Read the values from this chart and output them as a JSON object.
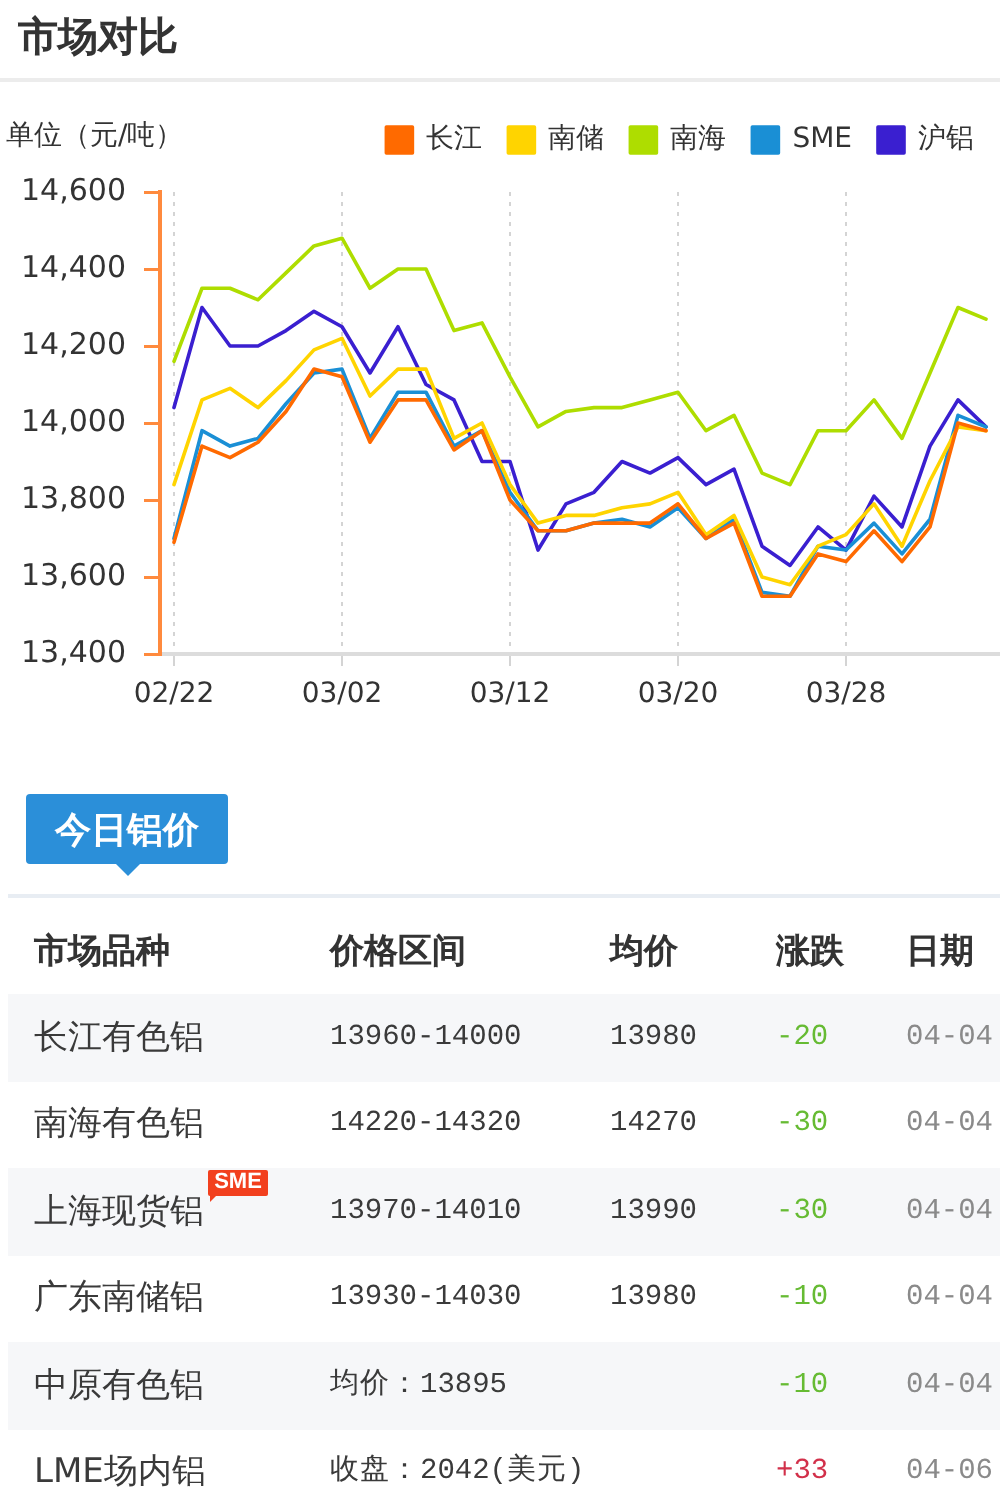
{
  "chart_data": [
    {
      "type": "line",
      "title": "市场对比",
      "ylabel": "单位（元/吨）",
      "categories": [
        "02/22",
        null,
        null,
        null,
        null,
        null,
        "03/02",
        null,
        null,
        null,
        null,
        null,
        "03/12",
        null,
        null,
        null,
        null,
        null,
        "03/20",
        null,
        null,
        null,
        null,
        null,
        "03/28",
        null,
        null,
        null,
        null,
        null
      ],
      "series": [
        {
          "name": "长江",
          "color": "#ff6a00",
          "values": [
            13690,
            13940,
            13910,
            13950,
            14030,
            14140,
            14120,
            13950,
            14060,
            14060,
            13930,
            13980,
            13800,
            13720,
            13720,
            13740,
            13740,
            13740,
            13790,
            13700,
            13740,
            13550,
            13550,
            13660,
            13640,
            13720,
            13640,
            13730,
            14000,
            13980
          ]
        },
        {
          "name": "南储",
          "color": "#ffd400",
          "values": [
            13840,
            14060,
            14090,
            14040,
            14110,
            14190,
            14220,
            14070,
            14140,
            14140,
            13960,
            14000,
            13840,
            13740,
            13760,
            13760,
            13780,
            13790,
            13820,
            13710,
            13760,
            13600,
            13580,
            13680,
            13710,
            13790,
            13680,
            13850,
            13990,
            13980
          ]
        },
        {
          "name": "南海",
          "color": "#aedd00",
          "values": [
            14160,
            14350,
            14350,
            14320,
            14390,
            14460,
            14480,
            14350,
            14400,
            14400,
            14240,
            14260,
            14120,
            13990,
            14030,
            14040,
            14040,
            14060,
            14080,
            13980,
            14020,
            13870,
            13840,
            13980,
            13980,
            14060,
            13960,
            14130,
            14300,
            14270
          ]
        },
        {
          "name": "SME",
          "color": "#1a8fd5",
          "values": [
            13700,
            13980,
            13940,
            13960,
            14050,
            14130,
            14140,
            13960,
            14080,
            14080,
            13940,
            13980,
            13820,
            13720,
            13720,
            13740,
            13750,
            13730,
            13780,
            13700,
            13750,
            13560,
            13550,
            13680,
            13670,
            13740,
            13660,
            13750,
            14020,
            13990
          ]
        },
        {
          "name": "沪铝",
          "color": "#3a1fd0",
          "values": [
            14040,
            14300,
            14200,
            14200,
            14240,
            14290,
            14250,
            14130,
            14250,
            14100,
            14060,
            13900,
            13900,
            13670,
            13790,
            13820,
            13900,
            13870,
            13910,
            13840,
            13880,
            13680,
            13630,
            13730,
            13670,
            13810,
            13730,
            13940,
            14060,
            13990
          ]
        }
      ],
      "ylim": [
        13400,
        14600
      ],
      "yticks": [
        {
          "value": 13400,
          "label": "13,400"
        },
        {
          "value": 13600,
          "label": "13,600"
        },
        {
          "value": 13800,
          "label": "13,800"
        },
        {
          "value": 14000,
          "label": "14,000"
        },
        {
          "value": 14200,
          "label": "14,200"
        },
        {
          "value": 14400,
          "label": "14,400"
        },
        {
          "value": 14600,
          "label": "14,600"
        }
      ],
      "grid": "x",
      "legend": "top right",
      "marker": "none",
      "line_style": "solid"
    },
    {
      "type": "other",
      "title": "今日铝价",
      "categories": [
        "市场品种",
        "价格区间",
        "均价",
        "涨跌",
        "日期"
      ],
      "y_categories": [
        "长江有色铝",
        "南海有色铝",
        "上海现货铝",
        "广东南储铝",
        "中原有色铝",
        "LME场内铝"
      ],
      "cell_labels": [
        [
          "13960-14000",
          "13980",
          "-20",
          "04-04"
        ],
        [
          "14220-14320",
          "14270",
          "-30",
          "04-04"
        ],
        [
          "13970-14010",
          "13990",
          "-30",
          "04-04"
        ],
        [
          "13930-14030",
          "13980",
          "-10",
          "04-04"
        ],
        [
          "均价：13895",
          null,
          "-10",
          "04-04"
        ],
        [
          "收盘：2042(美元)",
          null,
          "+33",
          "04-06"
        ]
      ],
      "colors": [
        "#66bb33",
        "#66bb33",
        "#66bb33",
        "#66bb33",
        "#66bb33",
        "#d2304a"
      ],
      "annotations": [
        {
          "text": "SME",
          "y": "上海现货铝"
        }
      ]
    }
  ]
}
